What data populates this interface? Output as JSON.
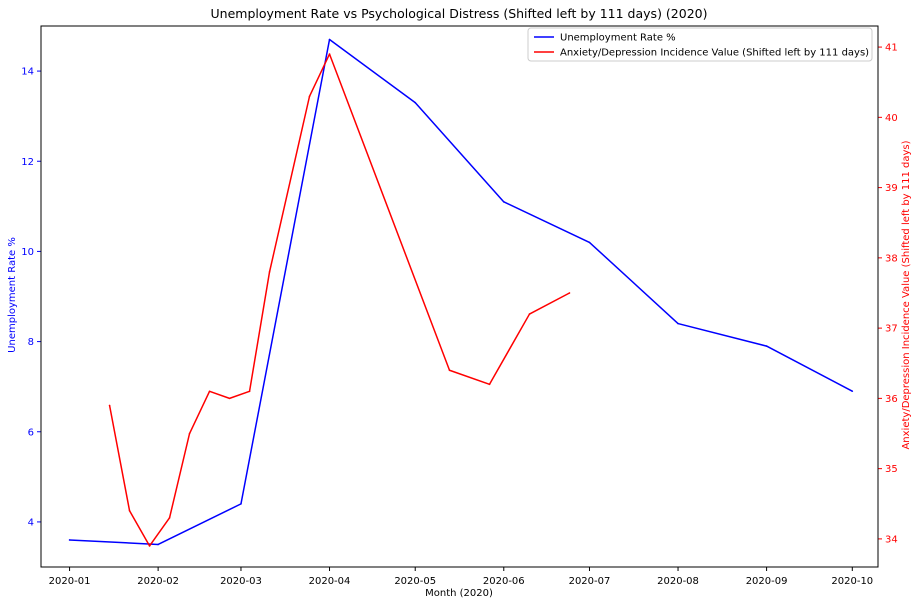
{
  "chart_data": {
    "type": "line",
    "title": "Unemployment Rate vs Psychological Distress (Shifted left by 111 days) (2020)",
    "xlabel": "Month (2020)",
    "x_ticks": [
      "2020-01",
      "2020-02",
      "2020-03",
      "2020-04",
      "2020-05",
      "2020-06",
      "2020-07",
      "2020-08",
      "2020-09",
      "2020-10"
    ],
    "xlim": [
      "2019-12-22",
      "2020-10-10"
    ],
    "grid": false,
    "legend_position": "top-right",
    "left_axis": {
      "label": "Unemployment Rate %",
      "color": "#0000ff",
      "ylim": [
        3.0,
        15.0
      ],
      "ticks": [
        4,
        6,
        8,
        10,
        12,
        14
      ]
    },
    "right_axis": {
      "label": "Anxiety/Depression Incidence Value (Shifted left by 111 days)",
      "color": "#ff0000",
      "ylim": [
        33.6,
        41.3
      ],
      "ticks": [
        34,
        35,
        36,
        37,
        38,
        39,
        40,
        41
      ]
    },
    "series": [
      {
        "name": "Unemployment Rate %",
        "axis": "left",
        "color": "#0000ff",
        "points": [
          {
            "x": "2020-01-01",
            "y": 3.6
          },
          {
            "x": "2020-02-01",
            "y": 3.5
          },
          {
            "x": "2020-03-01",
            "y": 4.4
          },
          {
            "x": "2020-04-01",
            "y": 14.7
          },
          {
            "x": "2020-05-01",
            "y": 13.3
          },
          {
            "x": "2020-06-01",
            "y": 11.1
          },
          {
            "x": "2020-07-01",
            "y": 10.2
          },
          {
            "x": "2020-08-01",
            "y": 8.4
          },
          {
            "x": "2020-09-01",
            "y": 7.9
          },
          {
            "x": "2020-10-01",
            "y": 6.9
          }
        ]
      },
      {
        "name": "Anxiety/Depression Incidence Value (Shifted left by 111 days)",
        "axis": "right",
        "color": "#ff0000",
        "points": [
          {
            "x": "2020-01-15",
            "y": 35.9
          },
          {
            "x": "2020-01-22",
            "y": 34.4
          },
          {
            "x": "2020-01-29",
            "y": 33.9
          },
          {
            "x": "2020-02-05",
            "y": 34.3
          },
          {
            "x": "2020-02-12",
            "y": 35.5
          },
          {
            "x": "2020-02-19",
            "y": 36.1
          },
          {
            "x": "2020-02-26",
            "y": 36.0
          },
          {
            "x": "2020-03-04",
            "y": 36.1
          },
          {
            "x": "2020-03-11",
            "y": 37.8
          },
          {
            "x": "2020-03-25",
            "y": 40.3
          },
          {
            "x": "2020-04-01",
            "y": 40.9
          },
          {
            "x": "2020-05-13",
            "y": 36.4
          },
          {
            "x": "2020-05-27",
            "y": 36.2
          },
          {
            "x": "2020-06-10",
            "y": 37.2
          },
          {
            "x": "2020-06-24",
            "y": 37.5
          }
        ]
      }
    ]
  }
}
